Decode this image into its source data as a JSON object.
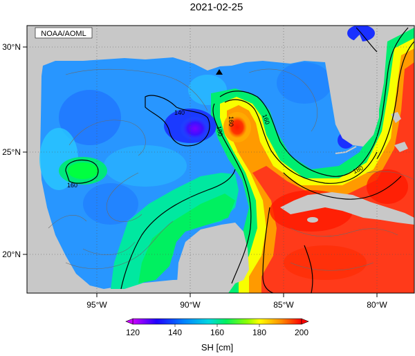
{
  "title": "2021-02-25",
  "credit": "NOAA/AOML",
  "axes": {
    "x_ticks": [
      "95°W",
      "90°W",
      "85°W",
      "80°W"
    ],
    "y_ticks": [
      "30°N",
      "25°N",
      "20°N"
    ]
  },
  "contour_labels": [
    {
      "text": "140"
    },
    {
      "text": "180"
    },
    {
      "text": "160"
    },
    {
      "text": "160"
    },
    {
      "text": "180"
    },
    {
      "text": "160"
    }
  ],
  "colorbar": {
    "title": "SH [cm]",
    "ticks": [
      "120",
      "140",
      "160",
      "180",
      "200"
    ],
    "min": 120,
    "max": 200,
    "colors": [
      "#cc00ff",
      "#1f00ff",
      "#0096ff",
      "#00e69b",
      "#00ff00",
      "#ffff00",
      "#ff8c00",
      "#ff0000"
    ]
  },
  "marker": {
    "type": "triangle",
    "color": "#000000"
  },
  "colors": {
    "land": "#c8c8c8",
    "gulf_low": "#1e96ff",
    "loop_current": "#ff3a1a"
  }
}
